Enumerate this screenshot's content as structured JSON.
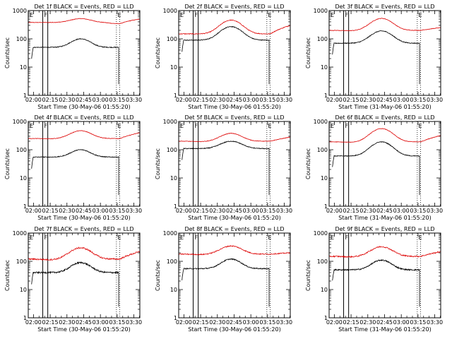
{
  "chart_data": {
    "type": "line",
    "layout": "3x3 grid",
    "y_axis_label": "Counts/sec",
    "y_scale": "log",
    "ylim": [
      1,
      1000
    ],
    "y_tick_labels": [
      "1",
      "10",
      "100",
      "1000"
    ],
    "xlim_minutes": [
      0,
      100
    ],
    "x_ticks_minutes": [
      4.667,
      19.667,
      34.667,
      49.667,
      64.667,
      79.667,
      94.667
    ],
    "x_tick_labels": [
      "02:00",
      "02:15",
      "02:30",
      "02:45",
      "03:00",
      "03:15",
      "03:30"
    ],
    "colors": {
      "events": "#000000",
      "lld": "#dd0000"
    },
    "panels": [
      {
        "title": "Det 1f BLACK = Events, RED = LLD",
        "xlabel": "Start Time (30-May-06 01:55:20)",
        "marker_F": "F",
        "marker_E1": "E",
        "marker_E2": "E",
        "lines_solid": [
          13,
          17.5
        ],
        "lines_dotted": [
          79,
          82
        ],
        "events": {
          "start": 3,
          "end": 81,
          "bg": 50,
          "peak": 100,
          "peak_at": 47,
          "width": 11,
          "noise": 0.03
        },
        "lld": {
          "start": 0,
          "end": 100,
          "bg": 380,
          "peak": 520,
          "peak_at": 47,
          "width": 12,
          "noise": 0.02,
          "rise_end": 500,
          "min_at": 81,
          "min": 320
        }
      },
      {
        "title": "Det 2f BLACK = Events, RED = LLD",
        "xlabel": "Start Time (30-May-06 01:55:20)",
        "marker_F": "F",
        "marker_E1": "E",
        "marker_E2": "E",
        "lines_solid": [
          13,
          17.5
        ],
        "lines_dotted": [
          79,
          82
        ],
        "events": {
          "start": 3,
          "end": 81,
          "bg": 90,
          "peak": 270,
          "peak_at": 47,
          "width": 12,
          "noise": 0.03
        },
        "lld": {
          "start": 0,
          "end": 100,
          "bg": 150,
          "peak": 460,
          "peak_at": 47,
          "width": 12,
          "noise": 0.03,
          "rise_end": 300,
          "min_at": 20,
          "min": 150
        }
      },
      {
        "title": "Det 3f BLACK = Events, RED = LLD",
        "xlabel": "Start Time (31-May-06 01:55:20)",
        "marker_F": "F",
        "marker_E1": "E",
        "marker_E2": "E",
        "lines_solid": [
          13,
          17.5
        ],
        "lines_dotted": [
          79,
          82
        ],
        "events": {
          "start": 3,
          "end": 81,
          "bg": 70,
          "peak": 190,
          "peak_at": 47,
          "width": 12,
          "noise": 0.03
        },
        "lld": {
          "start": 0,
          "end": 100,
          "bg": 200,
          "peak": 530,
          "peak_at": 47,
          "width": 12,
          "noise": 0.02,
          "rise_end": 250,
          "min_at": 20,
          "min": 190
        }
      },
      {
        "title": "Det 4f BLACK = Events, RED = LLD",
        "xlabel": "Start Time (30-May-06 01:55:20)",
        "marker_F": "F",
        "marker_E1": "E",
        "marker_E2": "E",
        "lines_solid": [
          13,
          17.5
        ],
        "lines_dotted": [
          79,
          82
        ],
        "events": {
          "start": 3,
          "end": 81,
          "bg": 55,
          "peak": 100,
          "peak_at": 47,
          "width": 11,
          "noise": 0.03
        },
        "lld": {
          "start": 0,
          "end": 100,
          "bg": 250,
          "peak": 470,
          "peak_at": 47,
          "width": 12,
          "noise": 0.02,
          "rise_end": 400,
          "min_at": 20,
          "min": 240
        }
      },
      {
        "title": "Det 5f BLACK = Events, RED = LLD",
        "xlabel": "Start Time (30-May-06 01:55:20)",
        "marker_F": "F",
        "marker_E1": "E",
        "marker_E2": "E",
        "lines_solid": [
          13,
          17.5
        ],
        "lines_dotted": [
          79,
          82
        ],
        "events": {
          "start": 3,
          "end": 81,
          "bg": 110,
          "peak": 200,
          "peak_at": 47,
          "width": 12,
          "noise": 0.03
        },
        "lld": {
          "start": 0,
          "end": 100,
          "bg": 200,
          "peak": 380,
          "peak_at": 47,
          "width": 12,
          "noise": 0.02,
          "rise_end": 280,
          "min_at": 20,
          "min": 190
        }
      },
      {
        "title": "Det 6f BLACK = Events, RED = LLD",
        "xlabel": "Start Time (31-May-06 01:55:20)",
        "marker_F": "F",
        "marker_E1": "E",
        "marker_E2": "E",
        "lines_solid": [
          13,
          17.5
        ],
        "lines_dotted": [
          79,
          82
        ],
        "events": {
          "start": 3,
          "end": 81,
          "bg": 60,
          "peak": 190,
          "peak_at": 47,
          "width": 12,
          "noise": 0.03
        },
        "lld": {
          "start": 0,
          "end": 100,
          "bg": 190,
          "peak": 560,
          "peak_at": 47,
          "width": 12,
          "noise": 0.02,
          "rise_end": 320,
          "min_at": 20,
          "min": 180
        }
      },
      {
        "title": "Det 7f BLACK = Events, RED = LLD",
        "xlabel": "Start Time (30-May-06 01:55:20)",
        "marker_F": "F",
        "marker_E1": "E",
        "marker_E2": "E",
        "lines_solid": [
          13,
          17.5
        ],
        "lines_dotted": [
          79,
          82
        ],
        "events": {
          "start": 3,
          "end": 81,
          "bg": 40,
          "peak": 90,
          "peak_at": 47,
          "width": 11,
          "noise": 0.06
        },
        "lld": {
          "start": 0,
          "end": 100,
          "bg": 120,
          "peak": 300,
          "peak_at": 47,
          "width": 12,
          "noise": 0.06,
          "rise_end": 220,
          "min_at": 20,
          "min": 110
        }
      },
      {
        "title": "Det 8f BLACK = Events, RED = LLD",
        "xlabel": "Start Time (30-May-06 01:55:20)",
        "marker_F": "F",
        "marker_E1": "E",
        "marker_E2": "E",
        "lines_solid": [
          13,
          17.5
        ],
        "lines_dotted": [
          79,
          82
        ],
        "events": {
          "start": 3,
          "end": 81,
          "bg": 55,
          "peak": 120,
          "peak_at": 47,
          "width": 11,
          "noise": 0.04
        },
        "lld": {
          "start": 0,
          "end": 100,
          "bg": 180,
          "peak": 350,
          "peak_at": 47,
          "width": 12,
          "noise": 0.04,
          "rise_end": 200,
          "min_at": 20,
          "min": 170
        }
      },
      {
        "title": "Det 9f BLACK = Events, RED = LLD",
        "xlabel": "Start Time (31-May-06 01:55:20)",
        "marker_F": "F",
        "marker_E1": "E",
        "marker_E2": "E",
        "lines_solid": [
          13,
          17.5
        ],
        "lines_dotted": [
          79,
          82
        ],
        "events": {
          "start": 3,
          "end": 81,
          "bg": 50,
          "peak": 110,
          "peak_at": 47,
          "width": 11,
          "noise": 0.05
        },
        "lld": {
          "start": 0,
          "end": 100,
          "bg": 150,
          "peak": 330,
          "peak_at": 47,
          "width": 12,
          "noise": 0.05,
          "rise_end": 220,
          "min_at": 20,
          "min": 140
        }
      }
    ]
  }
}
